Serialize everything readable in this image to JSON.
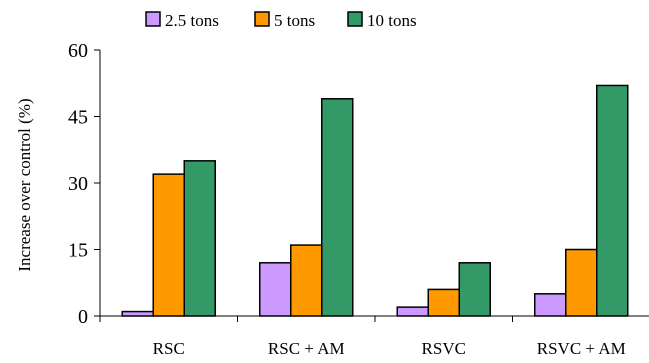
{
  "chart_data": {
    "type": "bar",
    "title": "",
    "xlabel": "",
    "ylabel": "Increase over control (%)",
    "categories": [
      "RSC",
      "RSC + AM",
      "RSVC",
      "RSVC + AM"
    ],
    "series": [
      {
        "name": "2.5 tons",
        "color": "#cc99ff",
        "values": [
          1,
          12,
          2,
          5
        ]
      },
      {
        "name": "5 tons",
        "color": "#ff9900",
        "values": [
          32,
          16,
          6,
          15
        ]
      },
      {
        "name": "10 tons",
        "color": "#339966",
        "values": [
          35,
          49,
          12,
          52
        ]
      }
    ],
    "ylim": [
      0,
      60
    ],
    "yticks": [
      0,
      15,
      30,
      45,
      60
    ],
    "grid": false,
    "legend_position": "top"
  }
}
